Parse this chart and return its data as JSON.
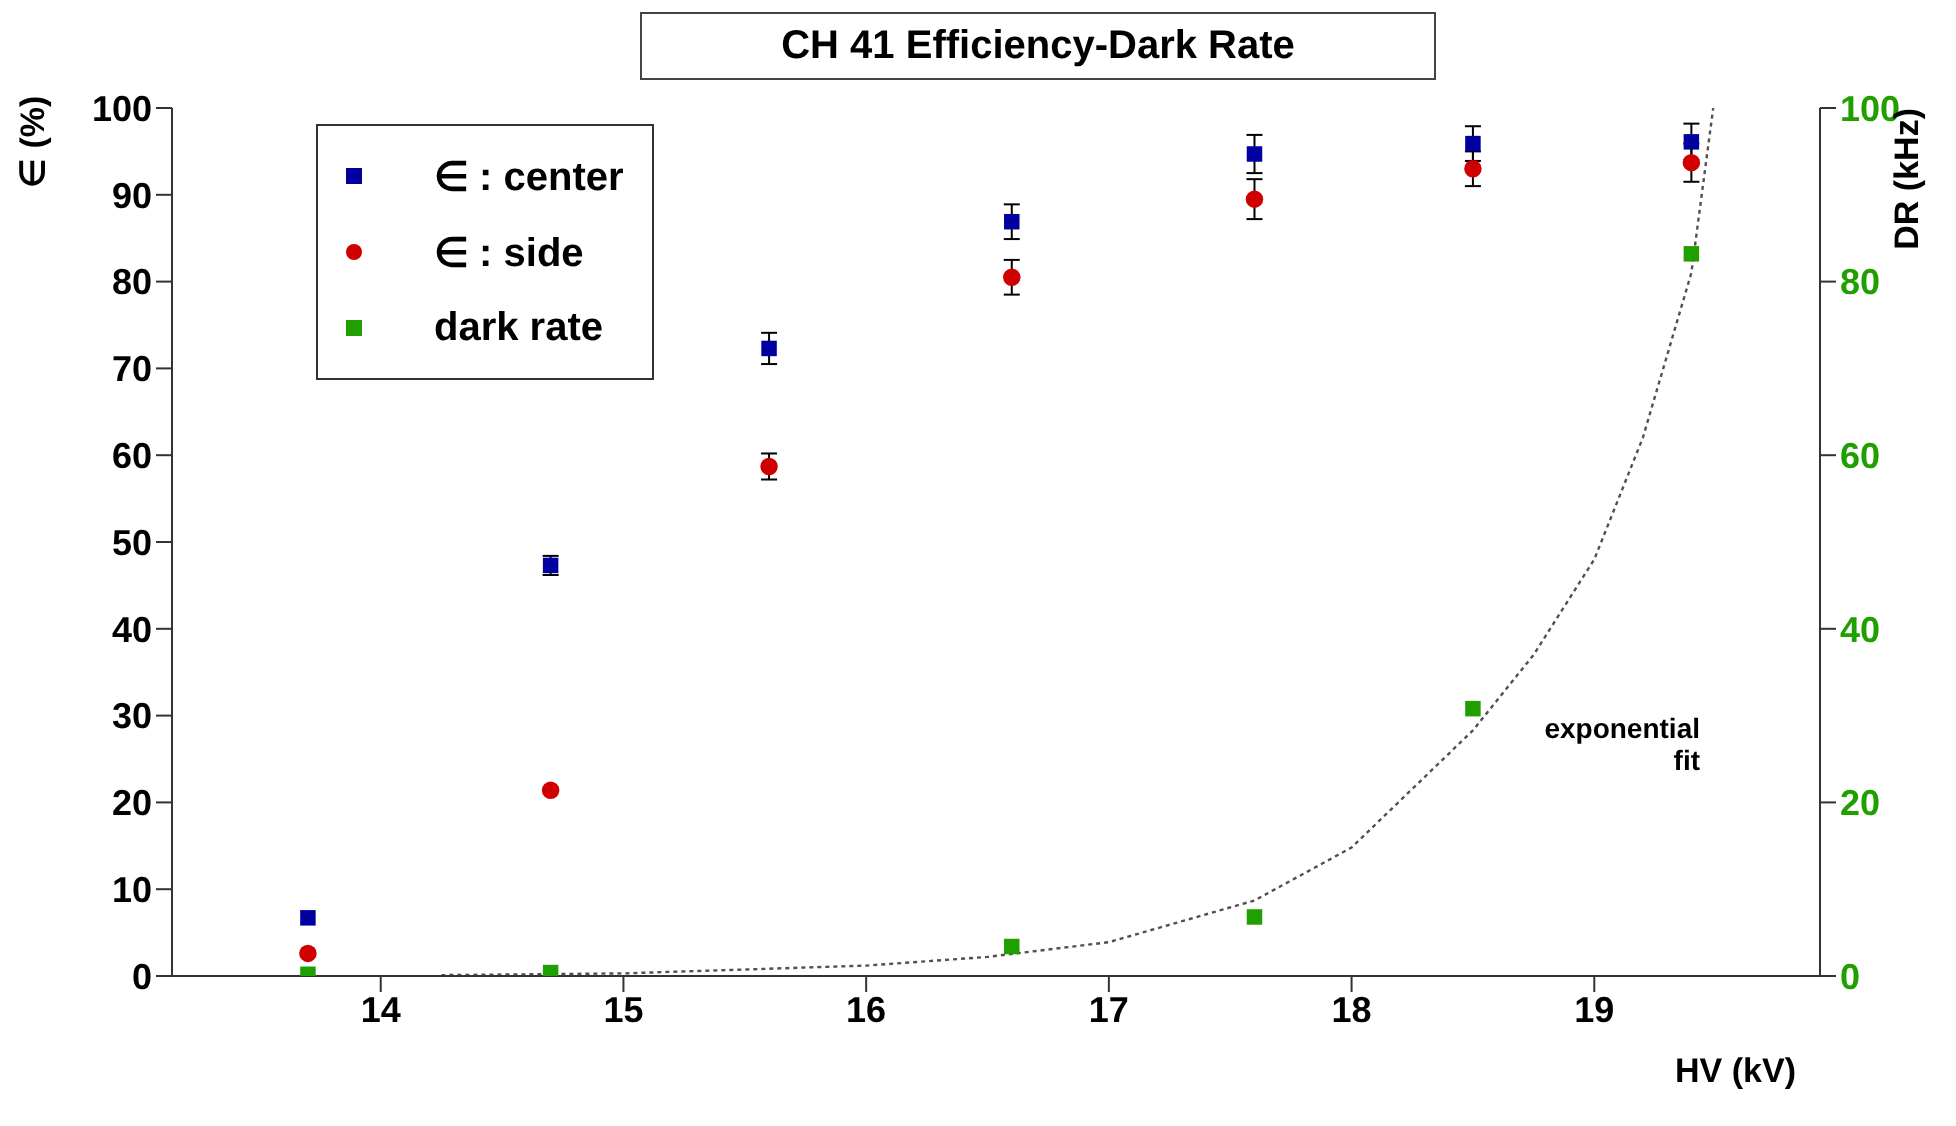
{
  "chart_data": {
    "type": "scatter",
    "title": "CH 41  Efficiency-Dark Rate",
    "xlabel": "HV (kV)",
    "ylabel": "∈ (%)",
    "y2label": "DR (kHz)",
    "xlim": [
      13.14,
      19.93
    ],
    "xticks": [
      14,
      15,
      16,
      17,
      18,
      19
    ],
    "ylim": [
      0,
      100
    ],
    "yticks": [
      0,
      10,
      20,
      30,
      40,
      50,
      60,
      70,
      80,
      90,
      100
    ],
    "y2lim": [
      0,
      100
    ],
    "y2ticks": [
      0,
      20,
      40,
      60,
      80,
      100
    ],
    "legend": "top left",
    "grid": false,
    "annotations": [
      "exponential fit"
    ],
    "series": [
      {
        "name": "∈ : center",
        "color": "#0000a0",
        "marker": "square",
        "x": [
          13.7,
          14.7,
          15.6,
          16.6,
          17.6,
          18.5,
          19.4
        ],
        "values": [
          6.7,
          47.3,
          72.3,
          86.9,
          94.7,
          95.9,
          96.1
        ],
        "errors": [
          null,
          1.1,
          1.8,
          2.0,
          2.2,
          2.0,
          2.1
        ]
      },
      {
        "name": "∈ : side",
        "color": "#d00000",
        "marker": "circle",
        "x": [
          13.7,
          14.7,
          15.6,
          16.6,
          17.6,
          18.5,
          19.4
        ],
        "values": [
          2.6,
          21.4,
          58.7,
          80.5,
          89.5,
          93.0,
          93.7
        ],
        "errors": [
          null,
          null,
          1.5,
          2.0,
          2.3,
          2.0,
          2.2
        ]
      },
      {
        "name": "dark rate",
        "color": "#209f00",
        "marker": "square",
        "axis": "y2",
        "x": [
          13.7,
          14.7,
          16.6,
          17.6,
          18.5,
          19.4
        ],
        "values": [
          0.2,
          0.4,
          3.4,
          6.8,
          30.8,
          83.2
        ]
      },
      {
        "type": "line",
        "color": "#505050",
        "line_style": "dotted",
        "marker": "none",
        "axis": "y2",
        "x": [
          14.25,
          15,
          16,
          16.5,
          17,
          17.6,
          18,
          18.5,
          18.75,
          19,
          19.2,
          19.4,
          19.49
        ],
        "values": [
          0.1,
          0.3,
          1.2,
          2.2,
          3.9,
          8.7,
          14.8,
          28.3,
          37,
          48,
          62,
          81,
          100
        ]
      }
    ]
  }
}
